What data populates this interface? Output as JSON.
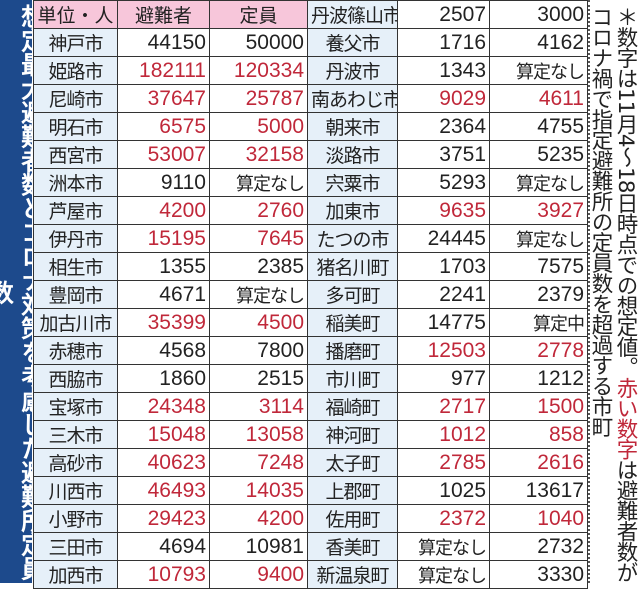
{
  "title": "想定最大避難者数とコロナ対策を考慮した避難所定員数",
  "header": {
    "unit": "単位・人",
    "evacuees": "避難者",
    "capacity": "定員"
  },
  "colors": {
    "title_bg": "#1d4a8c",
    "header_bg": "#f7c6da",
    "name_bg": "#e6f0f9",
    "over_capacity": "#c0283a"
  },
  "left_rows": [
    {
      "name": "神戸市",
      "evacuees": "44150",
      "capacity": "50000",
      "over": false
    },
    {
      "name": "姫路市",
      "evacuees": "182111",
      "capacity": "120334",
      "over": true
    },
    {
      "name": "尼崎市",
      "evacuees": "37647",
      "capacity": "25787",
      "over": true
    },
    {
      "name": "明石市",
      "evacuees": "6575",
      "capacity": "5000",
      "over": true
    },
    {
      "name": "西宮市",
      "evacuees": "53007",
      "capacity": "32158",
      "over": true
    },
    {
      "name": "洲本市",
      "evacuees": "9110",
      "capacity": "算定なし",
      "over": false
    },
    {
      "name": "芦屋市",
      "evacuees": "4200",
      "capacity": "2760",
      "over": true
    },
    {
      "name": "伊丹市",
      "evacuees": "15195",
      "capacity": "7645",
      "over": true
    },
    {
      "name": "相生市",
      "evacuees": "1355",
      "capacity": "2385",
      "over": false
    },
    {
      "name": "豊岡市",
      "evacuees": "4671",
      "capacity": "算定なし",
      "over": false
    },
    {
      "name": "加古川市",
      "evacuees": "35399",
      "capacity": "4500",
      "over": true
    },
    {
      "name": "赤穂市",
      "evacuees": "4568",
      "capacity": "7800",
      "over": false
    },
    {
      "name": "西脇市",
      "evacuees": "1860",
      "capacity": "2515",
      "over": false
    },
    {
      "name": "宝塚市",
      "evacuees": "24348",
      "capacity": "3114",
      "over": true
    },
    {
      "name": "三木市",
      "evacuees": "15048",
      "capacity": "13058",
      "over": true
    },
    {
      "name": "高砂市",
      "evacuees": "40623",
      "capacity": "7248",
      "over": true
    },
    {
      "name": "川西市",
      "evacuees": "46493",
      "capacity": "14035",
      "over": true
    },
    {
      "name": "小野市",
      "evacuees": "29423",
      "capacity": "4200",
      "over": true
    },
    {
      "name": "三田市",
      "evacuees": "4694",
      "capacity": "10981",
      "over": false
    },
    {
      "name": "加西市",
      "evacuees": "10793",
      "capacity": "9400",
      "over": true
    }
  ],
  "right_rows": [
    {
      "name": "丹波篠山市",
      "evacuees": "2507",
      "capacity": "3000",
      "over": false
    },
    {
      "name": "養父市",
      "evacuees": "1716",
      "capacity": "4162",
      "over": false
    },
    {
      "name": "丹波市",
      "evacuees": "1343",
      "capacity": "算定なし",
      "over": false
    },
    {
      "name": "南あわじ市",
      "evacuees": "9029",
      "capacity": "4611",
      "over": true
    },
    {
      "name": "朝来市",
      "evacuees": "2364",
      "capacity": "4755",
      "over": false
    },
    {
      "name": "淡路市",
      "evacuees": "3751",
      "capacity": "5235",
      "over": false
    },
    {
      "name": "宍粟市",
      "evacuees": "5293",
      "capacity": "算定なし",
      "over": false
    },
    {
      "name": "加東市",
      "evacuees": "9635",
      "capacity": "3927",
      "over": true
    },
    {
      "name": "たつの市",
      "evacuees": "24445",
      "capacity": "算定なし",
      "over": false
    },
    {
      "name": "猪名川町",
      "evacuees": "1703",
      "capacity": "7575",
      "over": false
    },
    {
      "name": "多可町",
      "evacuees": "2241",
      "capacity": "2379",
      "over": false
    },
    {
      "name": "稲美町",
      "evacuees": "14775",
      "capacity": "算定中",
      "over": false
    },
    {
      "name": "播磨町",
      "evacuees": "12503",
      "capacity": "2778",
      "over": true
    },
    {
      "name": "市川町",
      "evacuees": "977",
      "capacity": "1212",
      "over": false
    },
    {
      "name": "福崎町",
      "evacuees": "2717",
      "capacity": "1500",
      "over": true
    },
    {
      "name": "神河町",
      "evacuees": "1012",
      "capacity": "858",
      "over": true
    },
    {
      "name": "太子町",
      "evacuees": "2785",
      "capacity": "2616",
      "over": true
    },
    {
      "name": "上郡町",
      "evacuees": "1025",
      "capacity": "13617",
      "over": false
    },
    {
      "name": "佐用町",
      "evacuees": "2372",
      "capacity": "1040",
      "over": true
    },
    {
      "name": "香美町",
      "evacuees": "算定なし",
      "capacity": "2732",
      "over": false
    },
    {
      "name": "新温泉町",
      "evacuees": "算定なし",
      "capacity": "3330",
      "over": false
    }
  ],
  "note": {
    "part1": "＊数字は11月4～18日時点での想定値。",
    "red_part": "赤い数字",
    "part2": "は避難者数がコロナ禍で指定避難所の定員数を超過する市町"
  }
}
